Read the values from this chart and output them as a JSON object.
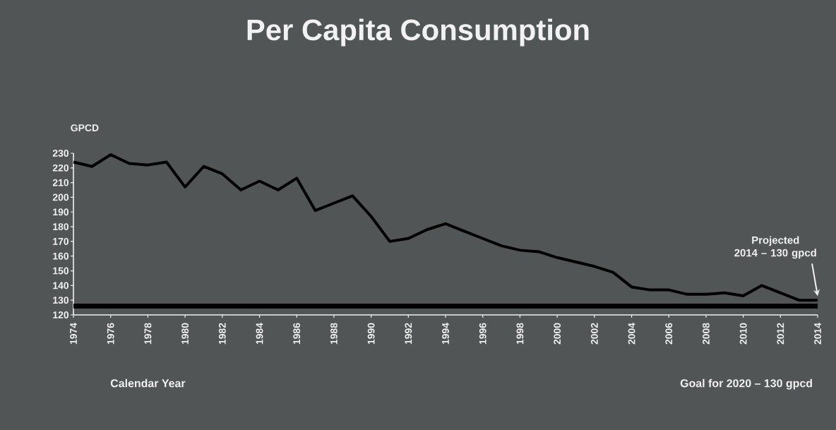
{
  "chart_data": {
    "type": "line",
    "title": "Per Capita Consumption",
    "xlabel": "Calendar Year",
    "ylabel": "GPCD",
    "x": [
      1974,
      1975,
      1976,
      1977,
      1978,
      1979,
      1980,
      1981,
      1982,
      1983,
      1984,
      1985,
      1986,
      1987,
      1988,
      1989,
      1990,
      1991,
      1992,
      1993,
      1994,
      1995,
      1996,
      1997,
      1998,
      1999,
      2000,
      2001,
      2002,
      2003,
      2004,
      2005,
      2006,
      2007,
      2008,
      2009,
      2010,
      2011,
      2012,
      2013,
      2014
    ],
    "series": [
      {
        "color": "#000000",
        "values": [
          224,
          221,
          229,
          223,
          222,
          224,
          207,
          221,
          216,
          205,
          211,
          205,
          213,
          191,
          196,
          201,
          187,
          170,
          172,
          178,
          182,
          177,
          172,
          167,
          164,
          163,
          159,
          156,
          153,
          149,
          139,
          137,
          137,
          134,
          134,
          135,
          133,
          140,
          135,
          130,
          130
        ]
      }
    ],
    "xlim": [
      1974,
      2014
    ],
    "xticks": [
      1974,
      1976,
      1978,
      1980,
      1982,
      1984,
      1986,
      1988,
      1990,
      1992,
      1994,
      1996,
      1998,
      2000,
      2002,
      2004,
      2006,
      2008,
      2010,
      2012,
      2014
    ],
    "ylim": [
      120,
      230
    ],
    "yticks": [
      120,
      130,
      140,
      150,
      160,
      170,
      180,
      190,
      200,
      210,
      220,
      230
    ],
    "ref_lines": [
      {
        "axis": "y",
        "value": 126,
        "color": "#000000"
      }
    ],
    "annotations": [
      "Projected\n2014 – 130 gpcd",
      "Goal for 2020 – 130 gpcd"
    ],
    "grid": false,
    "marker": "none",
    "line_style": "solid"
  }
}
